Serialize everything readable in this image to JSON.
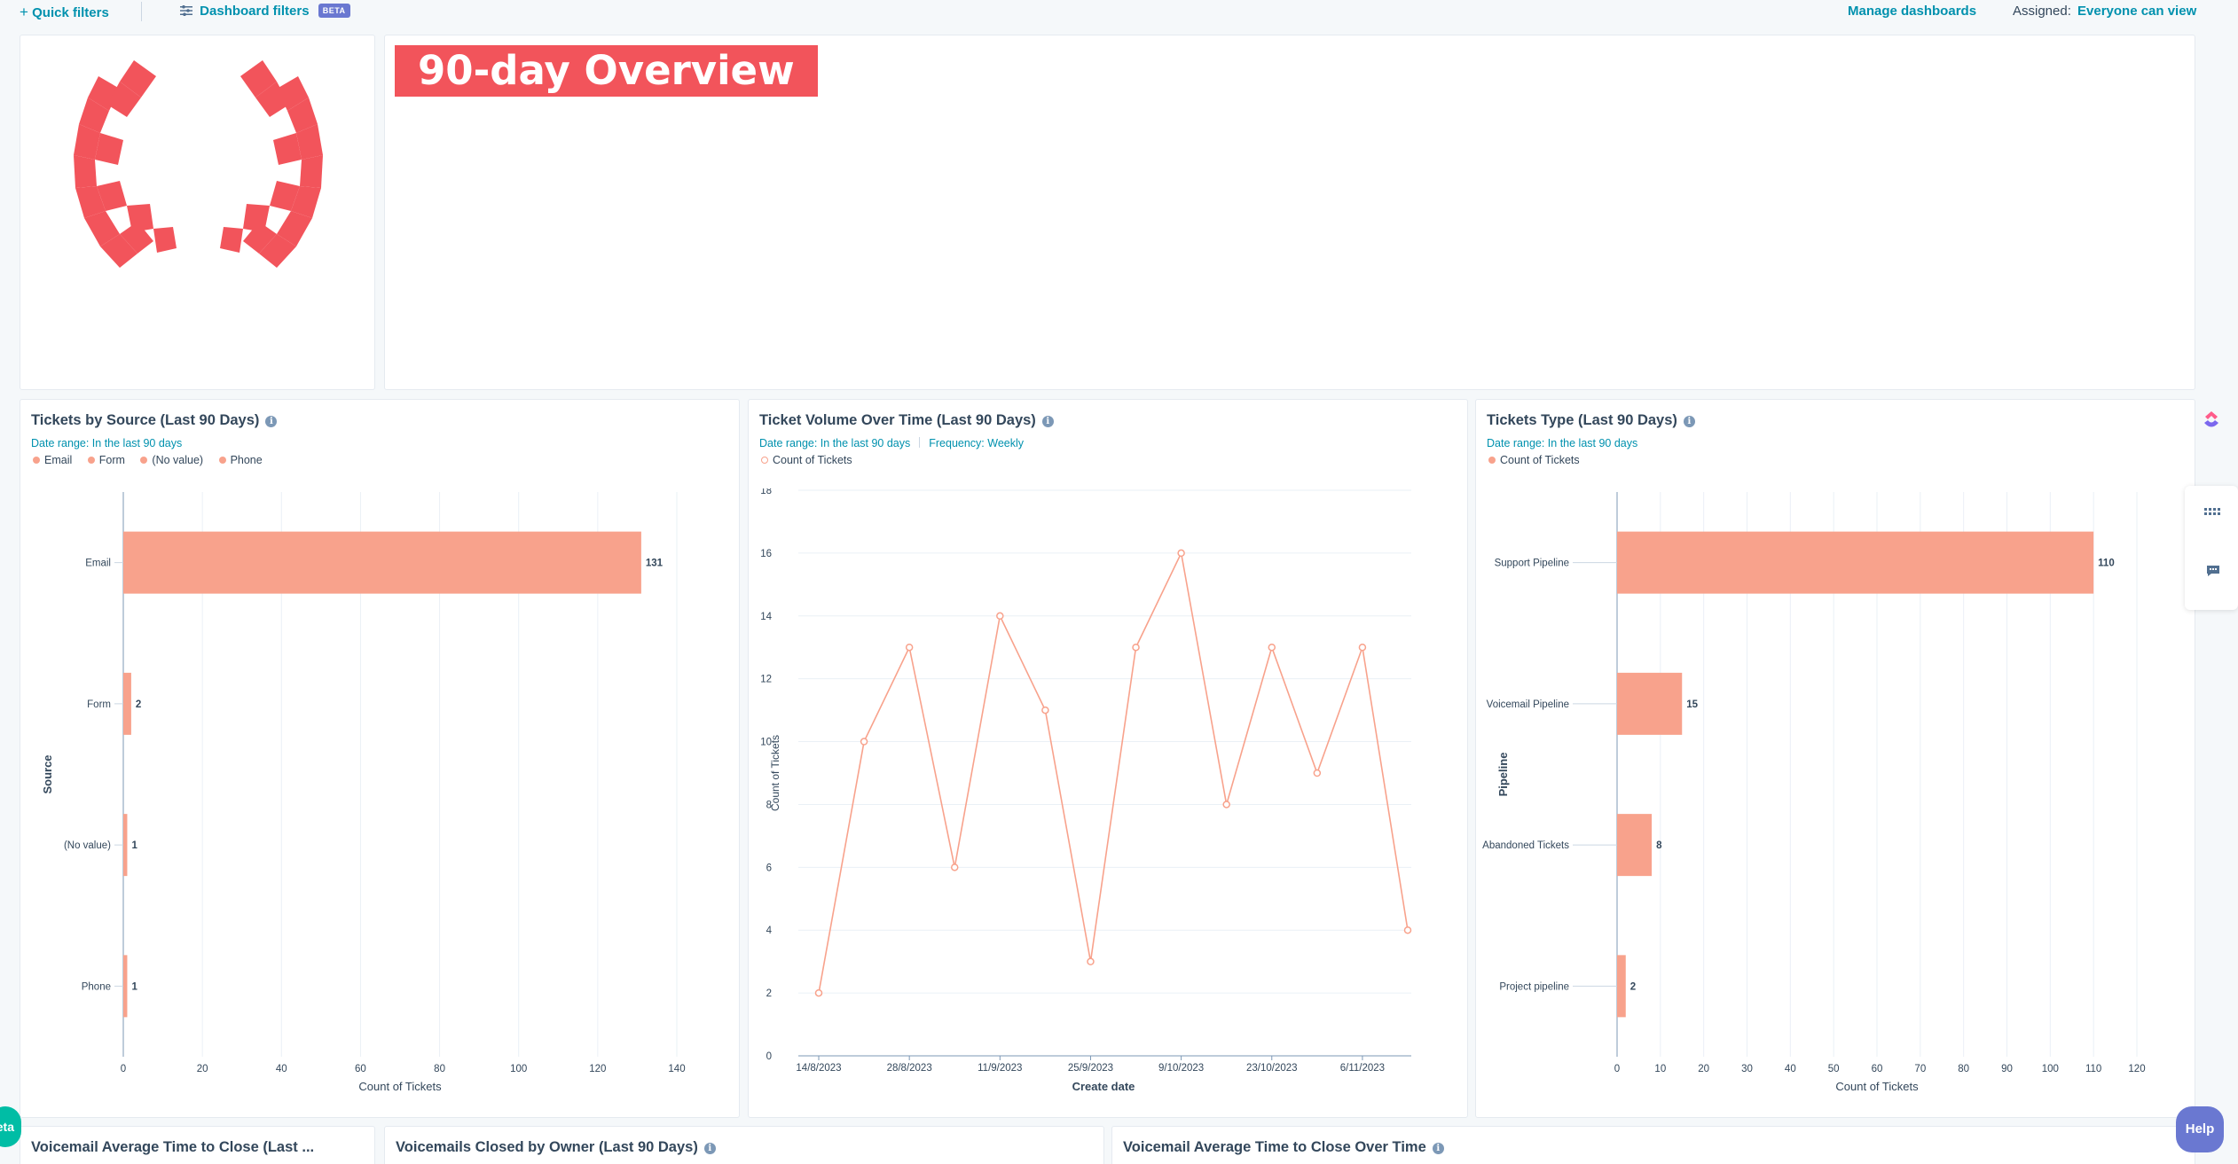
{
  "topbar": {
    "quick_filters": "Quick filters",
    "dashboard_filters": "Dashboard filters",
    "beta_badge": "BETA",
    "manage_dashboards": "Manage dashboards",
    "assigned_label": "Assigned:",
    "assigned_value": "Everyone can view"
  },
  "banner": {
    "title": "90-day Overview"
  },
  "cards": {
    "source": {
      "title": "Tickets by Source (Last 90 Days)",
      "date_range": "Date range: In the last 90 days",
      "legend": [
        "Email",
        "Form",
        "(No value)",
        "Phone"
      ],
      "ylabel": "Source",
      "xlabel": "Count of Tickets"
    },
    "volume": {
      "title": "Ticket Volume Over Time (Last 90 Days)",
      "date_range": "Date range: In the last 90 days",
      "frequency": "Frequency: Weekly",
      "legend": "Count of Tickets",
      "ylabel": "Count of Tickets",
      "xlabel": "Create date"
    },
    "type": {
      "title": "Tickets Type (Last 90 Days)",
      "date_range": "Date range: In the last 90 days",
      "legend": "Count of Tickets",
      "ylabel": "Pipeline",
      "xlabel": "Count of Tickets"
    },
    "bottom": [
      {
        "title": "Voicemail Average Time to Close (Last ..."
      },
      {
        "title": "Voicemails Closed by Owner (Last 90 Days)"
      },
      {
        "title": "Voicemail Average Time to Close Over Time"
      }
    ]
  },
  "floating": {
    "help": "Help",
    "beta_tab": "eta"
  },
  "colors": {
    "bar": "#f8a28c",
    "accent": "#0091ae",
    "banner": "#f2545b",
    "logo": "#f2545b"
  },
  "chart_data": [
    {
      "type": "bar",
      "orientation": "horizontal",
      "title": "Tickets by Source (Last 90 Days)",
      "categories": [
        "Email",
        "Form",
        "(No value)",
        "Phone"
      ],
      "values": [
        131,
        2,
        1,
        1
      ],
      "xlim": [
        0,
        140
      ],
      "xticks": [
        0,
        20,
        40,
        60,
        80,
        100,
        120,
        140
      ],
      "xlabel": "Count of Tickets",
      "ylabel": "Source",
      "legend": [
        "Email",
        "Form",
        "(No value)",
        "Phone"
      ],
      "grid": true
    },
    {
      "type": "line",
      "title": "Ticket Volume Over Time (Last 90 Days)",
      "x": [
        "14/8/2023",
        "21/8/2023",
        "28/8/2023",
        "4/9/2023",
        "11/9/2023",
        "18/9/2023",
        "25/9/2023",
        "2/10/2023",
        "9/10/2023",
        "16/10/2023",
        "23/10/2023",
        "30/10/2023",
        "6/11/2023",
        "13/11/2023"
      ],
      "xtick_labels": [
        "14/8/2023",
        "28/8/2023",
        "11/9/2023",
        "25/9/2023",
        "9/10/2023",
        "23/10/2023",
        "6/11/2023"
      ],
      "series": [
        {
          "name": "Count of Tickets",
          "values": [
            2,
            10,
            13,
            6,
            14,
            11,
            3,
            13,
            16,
            8,
            13,
            9,
            13,
            4
          ]
        }
      ],
      "ylim": [
        0,
        18
      ],
      "yticks": [
        0,
        2,
        4,
        6,
        8,
        10,
        12,
        14,
        16,
        18
      ],
      "xlabel": "Create date",
      "ylabel": "Count of Tickets",
      "grid": true
    },
    {
      "type": "bar",
      "orientation": "horizontal",
      "title": "Tickets Type (Last 90 Days)",
      "categories": [
        "Support Pipeline",
        "Voicemail Pipeline",
        "Abandoned Tickets",
        "Project pipeline"
      ],
      "values": [
        110,
        15,
        8,
        2
      ],
      "xlim": [
        0,
        120
      ],
      "xticks": [
        0,
        10,
        20,
        30,
        40,
        50,
        60,
        70,
        80,
        90,
        100,
        110,
        120
      ],
      "xlabel": "Count of Tickets",
      "ylabel": "Pipeline",
      "legend": [
        "Count of Tickets"
      ],
      "grid": true
    }
  ]
}
